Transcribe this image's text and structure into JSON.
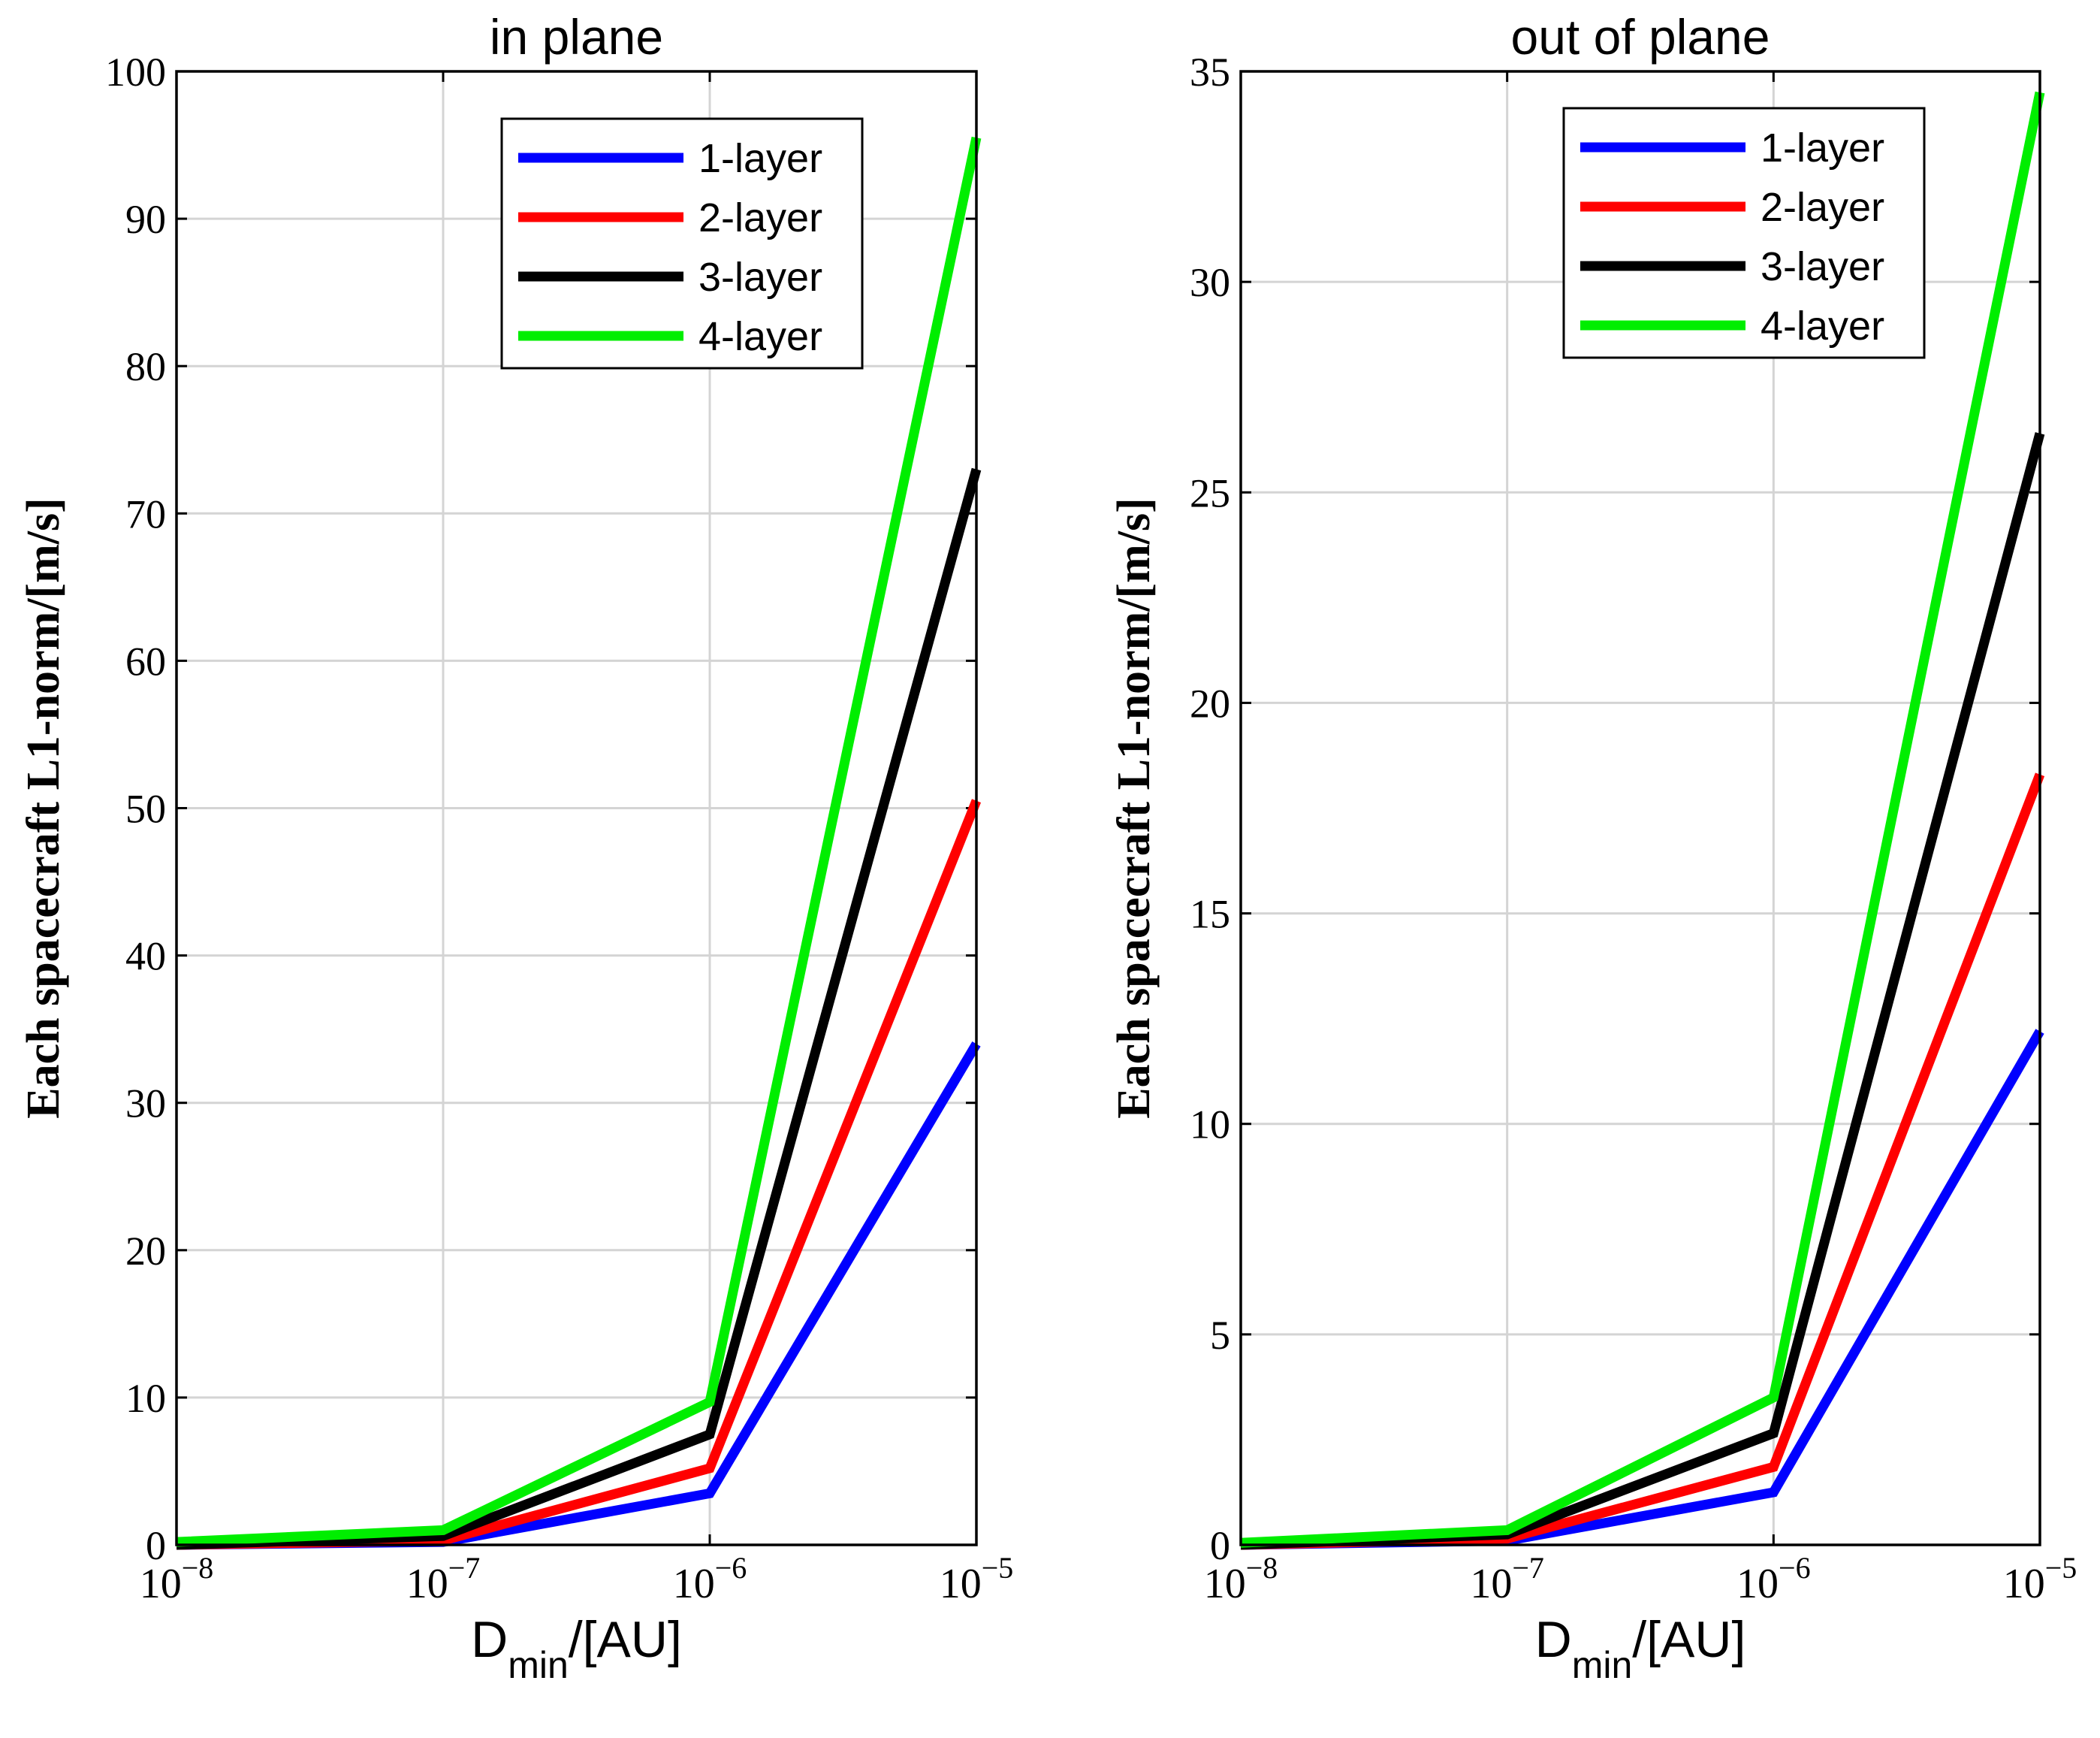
{
  "chart_data": [
    {
      "type": "line",
      "title": "in plane",
      "xlabel": "D",
      "xlabel_sub": "min",
      "xlabel_suffix": "/[AU]",
      "ylabel": "Each spacecraft L1-norm/[m/s]",
      "x": [
        1e-08,
        1e-07,
        1e-06,
        1e-05
      ],
      "x_ticks": [
        "10",
        "10",
        "10",
        "10"
      ],
      "x_tick_exponents": [
        "-8",
        "-7",
        "-6",
        "-5"
      ],
      "y_ticks": [
        "0",
        "10",
        "20",
        "30",
        "40",
        "50",
        "60",
        "70",
        "80",
        "90",
        "100"
      ],
      "ylim": [
        0,
        100
      ],
      "grid": true,
      "legend_position": "top-right",
      "series": [
        {
          "name": "1-layer",
          "color": "#0000ff",
          "values": [
            0,
            0.2,
            3.5,
            34
          ]
        },
        {
          "name": "2-layer",
          "color": "#ff0000",
          "values": [
            0,
            0.3,
            5.2,
            50.5
          ]
        },
        {
          "name": "3-layer",
          "color": "#000000",
          "values": [
            0,
            0.6,
            7.5,
            73
          ]
        },
        {
          "name": "4-layer",
          "color": "#00ee00",
          "values": [
            0.2,
            1.0,
            9.7,
            95.5
          ]
        }
      ]
    },
    {
      "type": "line",
      "title": "out of plane",
      "xlabel": "D",
      "xlabel_sub": "min",
      "xlabel_suffix": "/[AU]",
      "ylabel": "Each spacecraft L1-norm/[m/s]",
      "x": [
        1e-08,
        1e-07,
        1e-06,
        1e-05
      ],
      "x_ticks": [
        "10",
        "10",
        "10",
        "10"
      ],
      "x_tick_exponents": [
        "-8",
        "-7",
        "-6",
        "-5"
      ],
      "y_ticks": [
        "0",
        "5",
        "10",
        "15",
        "20",
        "25",
        "30",
        "35"
      ],
      "ylim": [
        0,
        35
      ],
      "grid": true,
      "legend_position": "top-right",
      "series": [
        {
          "name": "1-layer",
          "color": "#0000ff",
          "values": [
            0,
            0.1,
            1.25,
            12.2
          ]
        },
        {
          "name": "2-layer",
          "color": "#ff0000",
          "values": [
            0,
            0.15,
            1.85,
            18.3
          ]
        },
        {
          "name": "3-layer",
          "color": "#000000",
          "values": [
            0,
            0.25,
            2.65,
            26.4
          ]
        },
        {
          "name": "4-layer",
          "color": "#00ee00",
          "values": [
            0.05,
            0.35,
            3.5,
            34.5
          ]
        }
      ]
    }
  ]
}
